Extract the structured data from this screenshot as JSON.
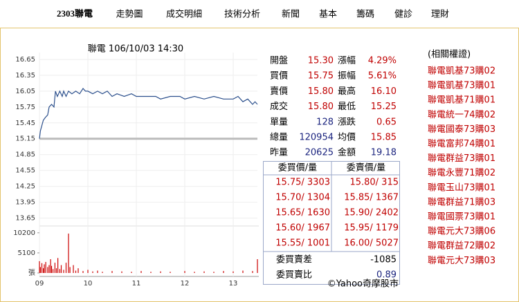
{
  "nav": [
    "2303聯電",
    "走勢圖",
    "成交明細",
    "技術分析",
    "新聞",
    "基本",
    "籌碼",
    "健診",
    "理財"
  ],
  "chart_data": [
    {
      "type": "line",
      "title": "聯電 106/10/03 14:30",
      "color": "#2b4f8c",
      "reference": 15.15,
      "reference_color": "#bbbbbb",
      "grid": true,
      "x": [
        9.0,
        9.02,
        9.05,
        9.08,
        9.12,
        9.17,
        9.2,
        9.25,
        9.3,
        9.33,
        9.37,
        9.42,
        9.47,
        9.5,
        9.55,
        9.6,
        9.67,
        9.75,
        9.83,
        9.9,
        9.95,
        10.0,
        10.1,
        10.2,
        10.3,
        10.4,
        10.5,
        10.6,
        10.75,
        10.9,
        11.0,
        11.2,
        11.4,
        11.5,
        11.7,
        11.9,
        12.0,
        12.2,
        12.4,
        12.6,
        12.8,
        13.0,
        13.1,
        13.2,
        13.3,
        13.4,
        13.45,
        13.5
      ],
      "values": [
        15.15,
        15.3,
        15.4,
        15.5,
        15.55,
        15.6,
        15.75,
        15.8,
        15.75,
        16.05,
        15.95,
        16.05,
        15.95,
        16.05,
        15.95,
        16.05,
        16.0,
        16.05,
        16.0,
        16.1,
        16.05,
        16.05,
        16.0,
        16.05,
        16.0,
        16.05,
        15.95,
        16.0,
        15.95,
        16.0,
        15.95,
        15.95,
        15.95,
        15.9,
        15.95,
        15.95,
        15.9,
        15.95,
        15.9,
        15.95,
        15.9,
        15.9,
        15.95,
        15.85,
        15.9,
        15.8,
        15.85,
        15.8
      ],
      "xlim": [
        9,
        13.5
      ],
      "xticks": [
        {
          "value": 9,
          "label": "09"
        },
        10,
        11,
        12,
        13
      ],
      "ylim": [
        13.5,
        16.78
      ],
      "yticks": [
        16.65,
        16.35,
        16.05,
        15.75,
        15.45,
        15.15,
        14.85,
        14.55,
        14.25,
        13.95,
        13.65
      ]
    },
    {
      "type": "bar",
      "color": "#cc0000",
      "x": [
        9.0,
        9.02,
        9.05,
        9.08,
        9.1,
        9.13,
        9.17,
        9.2,
        9.23,
        9.25,
        9.28,
        9.32,
        9.35,
        9.38,
        9.42,
        9.45,
        9.5,
        9.55,
        9.6,
        9.63,
        9.7,
        9.75,
        9.8,
        9.9,
        10.0,
        10.1,
        10.2,
        10.3,
        10.5,
        10.7,
        10.9,
        11.1,
        11.3,
        11.5,
        11.7,
        12.0,
        12.2,
        12.4,
        12.6,
        12.8,
        13.0,
        13.2,
        13.4,
        13.5
      ],
      "values": [
        3000,
        1500,
        2500,
        1200,
        2200,
        2800,
        1500,
        2000,
        3500,
        1800,
        1000,
        2600,
        1200,
        3800,
        1000,
        2000,
        800,
        2600,
        10000,
        1500,
        2000,
        600,
        1200,
        500,
        800,
        400,
        600,
        300,
        500,
        400,
        300,
        500,
        300,
        400,
        300,
        500,
        300,
        400,
        300,
        500,
        400,
        600,
        500,
        3500
      ],
      "xlim": [
        9,
        13.5
      ],
      "ylim": [
        0,
        11400
      ],
      "yticks": [
        10200,
        5100,
        {
          "value": 0,
          "label": "張"
        }
      ]
    }
  ],
  "quote": {
    "rows": [
      [
        "開盤",
        "15.30",
        "漲幅",
        "4.29%"
      ],
      [
        "買價",
        "15.75",
        "振幅",
        "5.61%"
      ],
      [
        "賣價",
        "15.80",
        "最高",
        "16.10"
      ],
      [
        "成交",
        "15.80",
        "最低",
        "15.25"
      ],
      [
        "單量",
        "128",
        "漲跌",
        "0.65"
      ],
      [
        "總量",
        "120954",
        "均價",
        "15.85"
      ],
      [
        "昨量",
        "20625",
        "金額",
        "19.18"
      ]
    ]
  },
  "order_book": {
    "headers": [
      "委買價/量",
      "委賣價/量"
    ],
    "rows": [
      [
        "15.75/ 3303",
        "15.80/  315"
      ],
      [
        "15.70/ 1304",
        "15.85/ 1367"
      ],
      [
        "15.65/ 1630",
        "15.90/ 2402"
      ],
      [
        "15.60/ 1967",
        "15.95/ 1179"
      ],
      [
        "15.55/ 1001",
        "16.00/ 5027"
      ]
    ],
    "summary": [
      [
        "委買賣差",
        "-1085"
      ],
      [
        "委買賣比",
        "0.89"
      ]
    ],
    "source": "©Yahoo奇摩股市"
  },
  "warrants": {
    "title": "(相關權證)",
    "items": [
      "聯電凱基73購02",
      "聯電凱基73購01",
      "聯電凱基71購01",
      "聯電統一74購02",
      "聯電國泰73購03",
      "聯電富邦74購01",
      "聯電群益73購01",
      "聯電永豐71購02",
      "聯電玉山73購01",
      "聯電群益71購03",
      "聯電國票73購01",
      "聯電元大73購06",
      "聯電群益72購02",
      "聯電元大73購03"
    ]
  }
}
